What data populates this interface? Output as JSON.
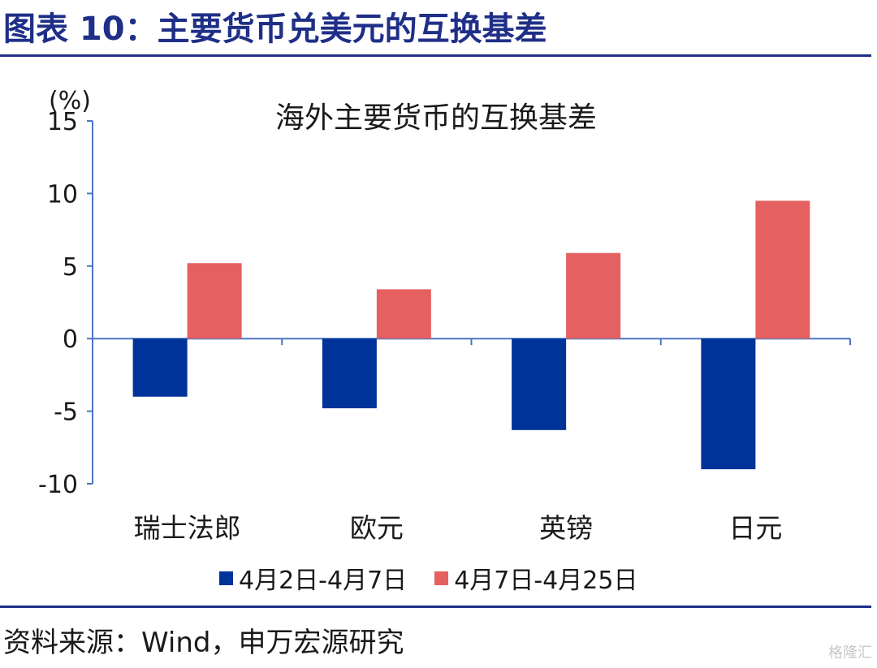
{
  "figure": {
    "title": "图表 10：主要货币兑美元的互换基差",
    "source": "资料来源：Wind，申万宏源研究",
    "watermark": "格隆汇"
  },
  "chart_data": {
    "type": "bar",
    "title": "海外主要货币的互换基差",
    "ylabel": "(%)",
    "xlabel": "",
    "categories": [
      "瑞士法郎",
      "欧元",
      "英镑",
      "日元"
    ],
    "ylim": [
      -10,
      15
    ],
    "yticks": [
      15,
      10,
      5,
      0,
      -5,
      -10
    ],
    "grid": false,
    "legend_position": "bottom",
    "series": [
      {
        "name": "4月2日-4月7日",
        "values": [
          -4.0,
          -4.8,
          -6.3,
          -9.0
        ],
        "color": "#003399"
      },
      {
        "name": "4月7日-4月25日",
        "values": [
          5.2,
          3.4,
          5.9,
          9.5
        ],
        "color": "#e56060"
      }
    ]
  }
}
